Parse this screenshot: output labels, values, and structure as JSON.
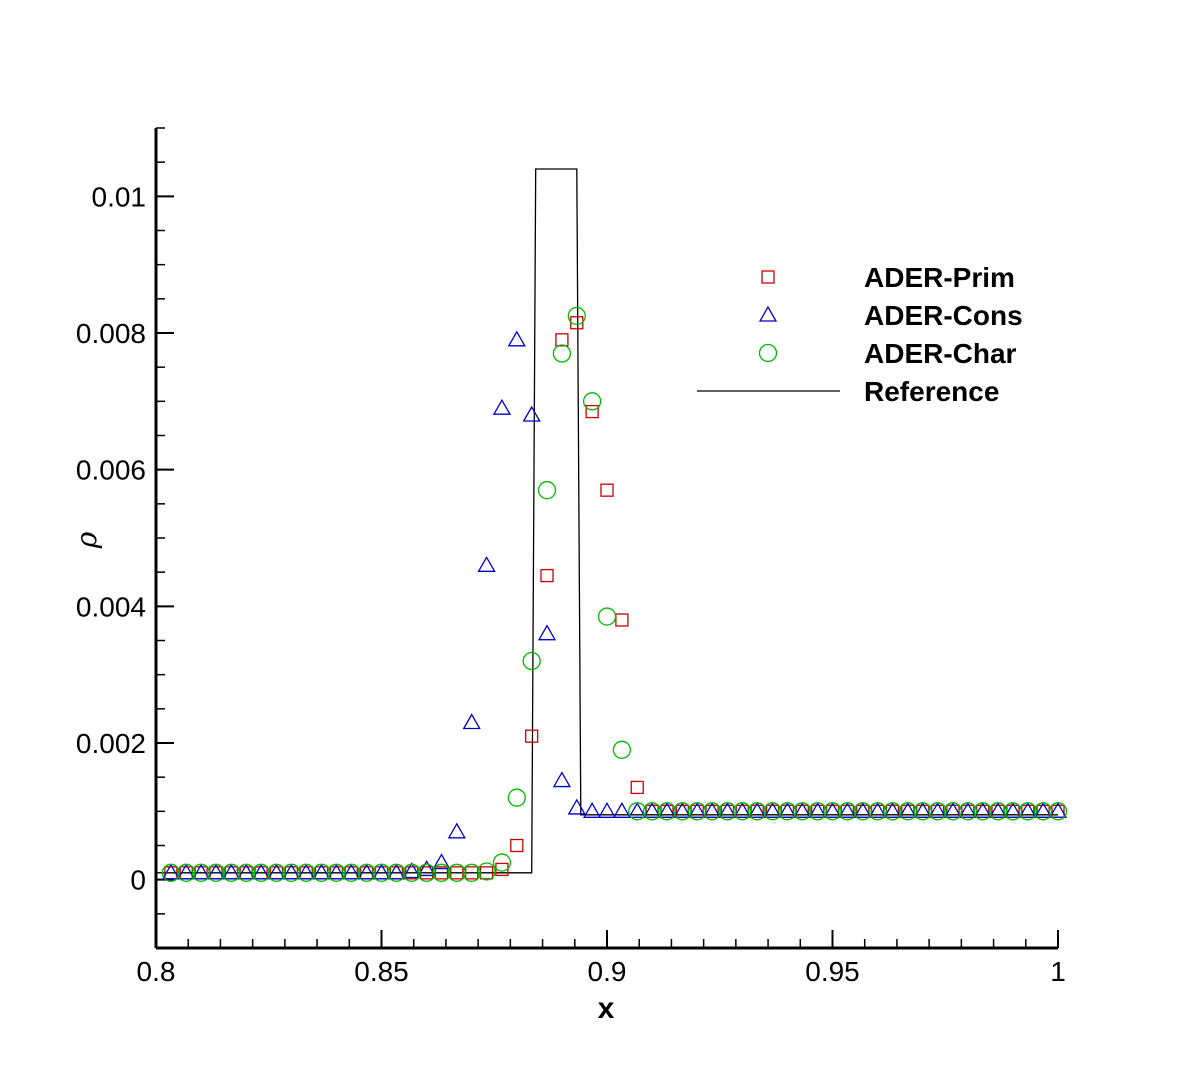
{
  "chart_data": {
    "type": "scatter",
    "title": "",
    "xlabel": "x",
    "ylabel": "ρ",
    "xlim": [
      0.8,
      1.0
    ],
    "ylim": [
      -0.001,
      0.011
    ],
    "xticks": [
      0.8,
      0.85,
      0.9,
      0.95,
      1.0
    ],
    "xtick_labels": [
      "0.8",
      "0.85",
      "0.9",
      "0.95",
      "1"
    ],
    "yticks": [
      0,
      0.002,
      0.004,
      0.006,
      0.008,
      0.01
    ],
    "ytick_labels": [
      "0",
      "0.002",
      "0.004",
      "0.006",
      "0.008",
      "0.01"
    ],
    "grid": false,
    "legend_position": "top-right",
    "series": [
      {
        "name": "ADER-Prim",
        "marker": "square",
        "color": "#cc0000",
        "x": [
          0.8033,
          0.8067,
          0.81,
          0.8133,
          0.8167,
          0.82,
          0.8233,
          0.8267,
          0.83,
          0.8333,
          0.8367,
          0.84,
          0.8433,
          0.8467,
          0.85,
          0.8533,
          0.8567,
          0.86,
          0.8633,
          0.8667,
          0.87,
          0.8733,
          0.8767,
          0.88,
          0.8833,
          0.8867,
          0.89,
          0.8933,
          0.8967,
          0.9,
          0.9033,
          0.9067,
          0.91,
          0.9133,
          0.9167,
          0.92,
          0.9233,
          0.9267,
          0.93,
          0.9333,
          0.9367,
          0.94,
          0.9433,
          0.9467,
          0.95,
          0.9533,
          0.9567,
          0.96,
          0.9633,
          0.9667,
          0.97,
          0.9733,
          0.9767,
          0.98,
          0.9833,
          0.9867,
          0.99,
          0.9933,
          0.9967,
          1.0
        ],
        "y": [
          0.0001,
          0.0001,
          0.0001,
          0.0001,
          0.0001,
          0.0001,
          0.0001,
          0.0001,
          0.0001,
          0.0001,
          0.0001,
          0.0001,
          0.0001,
          0.0001,
          0.0001,
          0.0001,
          0.0001,
          0.0001,
          0.0001,
          0.0001,
          0.0001,
          0.0001,
          0.00015,
          0.0005,
          0.0021,
          0.00445,
          0.0079,
          0.00815,
          0.00685,
          0.0057,
          0.0038,
          0.00135,
          0.001,
          0.001,
          0.001,
          0.001,
          0.001,
          0.001,
          0.001,
          0.001,
          0.001,
          0.001,
          0.001,
          0.001,
          0.001,
          0.001,
          0.001,
          0.001,
          0.001,
          0.001,
          0.001,
          0.001,
          0.001,
          0.001,
          0.001,
          0.001,
          0.001,
          0.001,
          0.001,
          0.001
        ]
      },
      {
        "name": "ADER-Cons",
        "marker": "triangle",
        "color": "#0000cc",
        "x": [
          0.8033,
          0.8067,
          0.81,
          0.8133,
          0.8167,
          0.82,
          0.8233,
          0.8267,
          0.83,
          0.8333,
          0.8367,
          0.84,
          0.8433,
          0.8467,
          0.85,
          0.8533,
          0.8567,
          0.86,
          0.8633,
          0.8667,
          0.87,
          0.8733,
          0.8767,
          0.88,
          0.8833,
          0.8867,
          0.89,
          0.8933,
          0.8967,
          0.9,
          0.9033,
          0.9067,
          0.91,
          0.9133,
          0.9167,
          0.92,
          0.9233,
          0.9267,
          0.93,
          0.9333,
          0.9367,
          0.94,
          0.9433,
          0.9467,
          0.95,
          0.9533,
          0.9567,
          0.96,
          0.9633,
          0.9667,
          0.97,
          0.9733,
          0.9767,
          0.98,
          0.9833,
          0.9867,
          0.99,
          0.9933,
          0.9967,
          1.0
        ],
        "y": [
          0.0001,
          0.0001,
          0.0001,
          0.0001,
          0.0001,
          0.0001,
          0.0001,
          0.0001,
          0.0001,
          0.0001,
          0.0001,
          0.0001,
          0.0001,
          0.0001,
          0.0001,
          0.0001,
          0.00012,
          0.00015,
          0.00025,
          0.0007,
          0.0023,
          0.0046,
          0.0069,
          0.0079,
          0.0068,
          0.0036,
          0.00145,
          0.00105,
          0.001,
          0.001,
          0.001,
          0.001,
          0.001,
          0.001,
          0.001,
          0.001,
          0.001,
          0.001,
          0.001,
          0.001,
          0.001,
          0.001,
          0.001,
          0.001,
          0.001,
          0.001,
          0.001,
          0.001,
          0.001,
          0.001,
          0.001,
          0.001,
          0.001,
          0.001,
          0.001,
          0.001,
          0.001,
          0.001,
          0.001,
          0.001
        ]
      },
      {
        "name": "ADER-Char",
        "marker": "circle",
        "color": "#00bb00",
        "x": [
          0.8033,
          0.8067,
          0.81,
          0.8133,
          0.8167,
          0.82,
          0.8233,
          0.8267,
          0.83,
          0.8333,
          0.8367,
          0.84,
          0.8433,
          0.8467,
          0.85,
          0.8533,
          0.8567,
          0.86,
          0.8633,
          0.8667,
          0.87,
          0.8733,
          0.8767,
          0.88,
          0.8833,
          0.8867,
          0.89,
          0.8933,
          0.8967,
          0.9,
          0.9033,
          0.9067,
          0.91,
          0.9133,
          0.9167,
          0.92,
          0.9233,
          0.9267,
          0.93,
          0.9333,
          0.9367,
          0.94,
          0.9433,
          0.9467,
          0.95,
          0.9533,
          0.9567,
          0.96,
          0.9633,
          0.9667,
          0.97,
          0.9733,
          0.9767,
          0.98,
          0.9833,
          0.9867,
          0.99,
          0.9933,
          0.9967,
          1.0
        ],
        "y": [
          0.0001,
          0.0001,
          0.0001,
          0.0001,
          0.0001,
          0.0001,
          0.0001,
          0.0001,
          0.0001,
          0.0001,
          0.0001,
          0.0001,
          0.0001,
          0.0001,
          0.0001,
          0.0001,
          0.0001,
          0.0001,
          0.0001,
          0.0001,
          0.0001,
          0.00012,
          0.00025,
          0.0012,
          0.0032,
          0.0057,
          0.0077,
          0.00825,
          0.007,
          0.00385,
          0.0019,
          0.001,
          0.001,
          0.001,
          0.001,
          0.001,
          0.001,
          0.001,
          0.001,
          0.001,
          0.001,
          0.001,
          0.001,
          0.001,
          0.001,
          0.001,
          0.001,
          0.001,
          0.001,
          0.001,
          0.001,
          0.001,
          0.001,
          0.001,
          0.001,
          0.001,
          0.001,
          0.001,
          0.001,
          0.001
        ]
      },
      {
        "name": "Reference",
        "marker": "line",
        "color": "#000000",
        "x": [
          0.8,
          0.8833,
          0.8842,
          0.8933,
          0.8942,
          1.0
        ],
        "y": [
          0.0001,
          0.0001,
          0.0104,
          0.0104,
          0.00095,
          0.00095
        ]
      }
    ]
  }
}
